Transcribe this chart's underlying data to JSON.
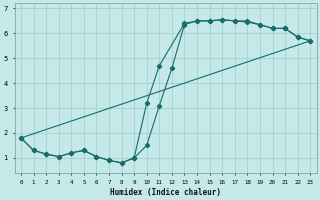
{
  "xlabel": "Humidex (Indice chaleur)",
  "background_color": "#c5e8e8",
  "grid_color": "#9ecece",
  "line_color": "#1a6b6b",
  "xlim": [
    -0.5,
    23.5
  ],
  "ylim": [
    0.4,
    7.2
  ],
  "xticks": [
    0,
    1,
    2,
    3,
    4,
    5,
    6,
    7,
    8,
    9,
    10,
    11,
    12,
    13,
    14,
    15,
    16,
    17,
    18,
    19,
    20,
    21,
    22,
    23
  ],
  "yticks": [
    1,
    2,
    3,
    4,
    5,
    6,
    7
  ],
  "line1_x": [
    0,
    1,
    2,
    3,
    4,
    5,
    6,
    7,
    8,
    9,
    10,
    11,
    13,
    14,
    15,
    16,
    17,
    18,
    19,
    20,
    21,
    22,
    23
  ],
  "line1_y": [
    1.8,
    1.3,
    1.15,
    1.05,
    1.2,
    1.3,
    1.05,
    0.9,
    0.8,
    1.0,
    3.2,
    4.7,
    6.4,
    6.5,
    6.5,
    6.55,
    6.5,
    6.5,
    6.35,
    6.2,
    6.2,
    5.85,
    5.7
  ],
  "line2_x": [
    0,
    1,
    2,
    3,
    4,
    5,
    6,
    7,
    8,
    9,
    10,
    11,
    12,
    13,
    14,
    15,
    16,
    17,
    18,
    19,
    20,
    21,
    22,
    23
  ],
  "line2_y": [
    1.8,
    1.3,
    1.15,
    1.05,
    1.2,
    1.3,
    1.05,
    0.9,
    0.8,
    1.0,
    1.5,
    3.1,
    4.6,
    6.35,
    6.5,
    6.5,
    6.55,
    6.5,
    6.45,
    6.35,
    6.2,
    6.2,
    5.85,
    5.7
  ],
  "line3_x": [
    0,
    23
  ],
  "line3_y": [
    1.8,
    5.7
  ]
}
